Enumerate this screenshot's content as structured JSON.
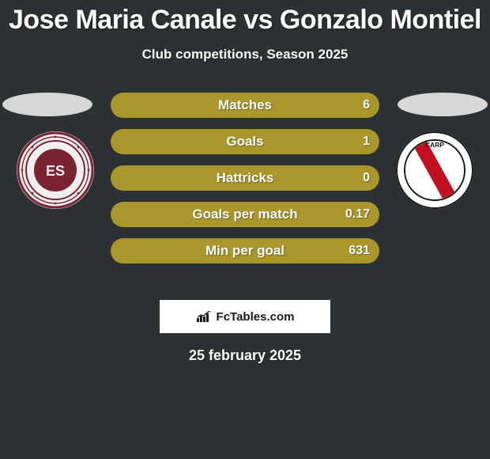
{
  "colors": {
    "bg": "#2c3234",
    "text": "#ffffff",
    "bar_fill": "#a9972c",
    "bar_track": "#2c3234",
    "footer_box_bg": "#ffffff",
    "footer_box_text": "#1a1a1a",
    "ellipse_fill": "#d8d8d8"
  },
  "typography": {
    "title_size": 34,
    "subtitle_size": 17,
    "bar_label_size": 17,
    "bar_value_size": 16,
    "date_size": 18,
    "footer_size": 15
  },
  "header": {
    "title": "Jose Maria Canale vs Gonzalo Montiel",
    "subtitle": "Club competitions, Season 2025"
  },
  "bars": {
    "track_radius": 16,
    "rows": [
      {
        "label": "Matches",
        "left": "",
        "right": "6"
      },
      {
        "label": "Goals",
        "left": "",
        "right": "1"
      },
      {
        "label": "Hattricks",
        "left": "",
        "right": "0"
      },
      {
        "label": "Goals per match",
        "left": "",
        "right": "0.17"
      },
      {
        "label": "Min per goal",
        "left": "",
        "right": "631"
      }
    ]
  },
  "left_club": {
    "badge_bg": "#f2f0ee",
    "badge_ring": "#7a2433",
    "badge_inner": "#7a2433",
    "badge_text": "ES"
  },
  "right_club": {
    "badge_bg": "#ffffff",
    "badge_ring": "#1a1a1a",
    "stripe": "#c21020",
    "badge_text": "CARP"
  },
  "footer": {
    "brand": "FcTables.com",
    "date": "25 february 2025"
  }
}
